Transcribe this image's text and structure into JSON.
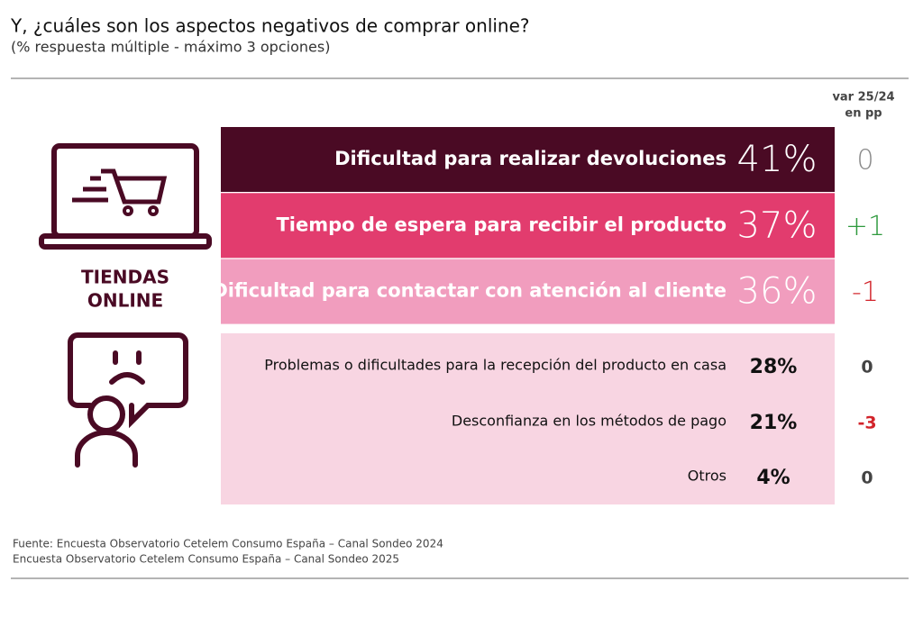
{
  "header": {
    "title": "Y, ¿cuáles son los aspectos negativos de comprar online?",
    "subtitle": "(% respuesta múltiple - máximo 3 opciones)"
  },
  "change_header": [
    "var 25/24",
    "en pp"
  ],
  "segment_label": [
    "TIENDAS",
    "ONLINE"
  ],
  "rows": [
    {
      "label": "Dificultad para realizar devoluciones",
      "value": "41%",
      "change": "0",
      "fill": "#4a0a24",
      "change_color": "#8a8a8a"
    },
    {
      "label": "Tiempo de espera para recibir el producto",
      "value": "37%",
      "change": "+1",
      "fill": "#e23c6e",
      "change_color": "#2f9a3e"
    },
    {
      "label": "Dificultad para contactar con atención al cliente",
      "value": "36%",
      "change": "-1",
      "fill": "#f19dbe",
      "change_color": "#d2232a"
    },
    {
      "label": "Problemas o dificultades para la recepción del producto en casa",
      "value": "28%",
      "change": "0",
      "change_color": "#444444"
    },
    {
      "label": "Desconfianza en los métodos de pago",
      "value": "21%",
      "change": "-3",
      "change_color": "#d2232a"
    },
    {
      "label": "Otros",
      "value": "4%",
      "change": "0",
      "change_color": "#444444"
    }
  ],
  "sources": [
    "Fuente: Encuesta Observatorio Cetelem Consumo España – Canal Sondeo 2024",
    "Encuesta Observatorio Cetelem Consumo España – Canal Sondeo 2025"
  ]
}
